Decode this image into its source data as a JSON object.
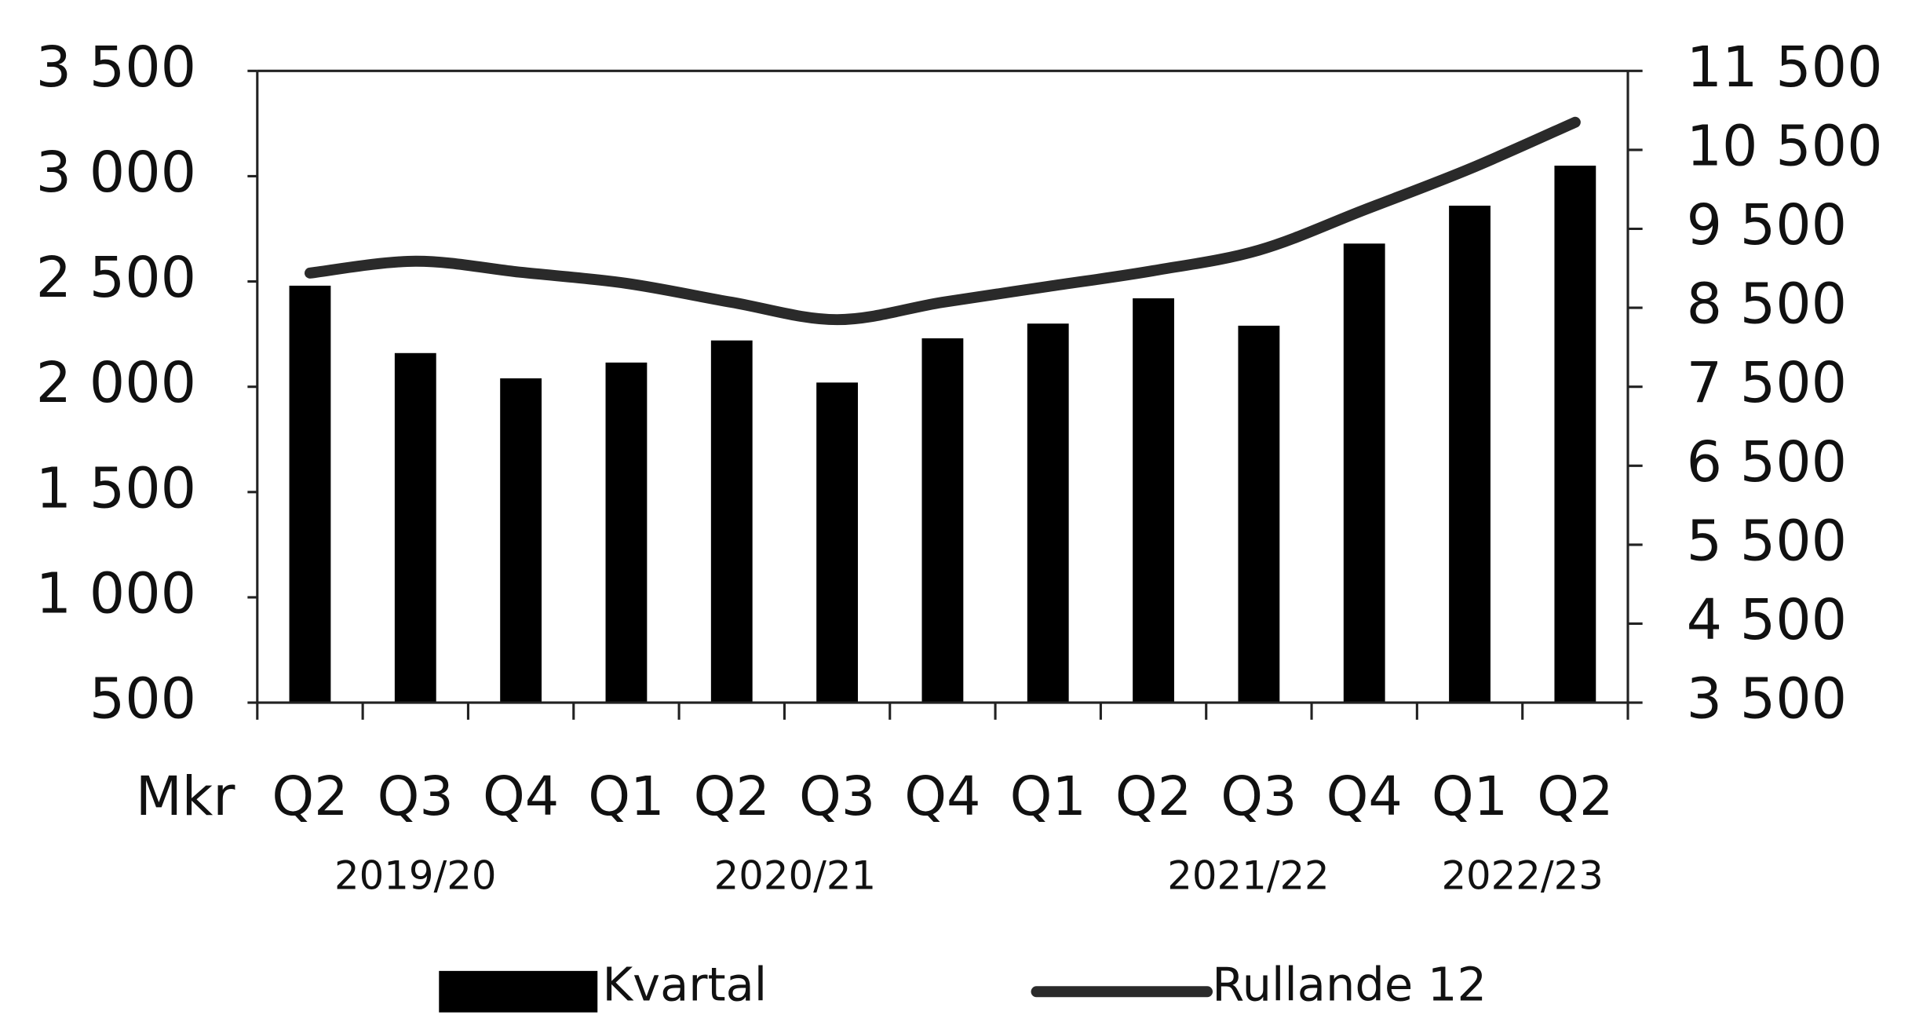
{
  "chart_data": {
    "type": "bar-line",
    "ylabel": "Mkr",
    "categories": [
      "Q2",
      "Q3",
      "Q4",
      "Q1",
      "Q2",
      "Q3",
      "Q4",
      "Q1",
      "Q2",
      "Q3",
      "Q4",
      "Q1",
      "Q2"
    ],
    "periods": [
      "2019/20",
      "2020/21",
      "2021/22",
      "2022/23"
    ],
    "series": [
      {
        "name": "Kvartal",
        "type": "bar",
        "color": "#000000",
        "values": [
          2480,
          2160,
          2040,
          2115,
          2220,
          2020,
          2230,
          2300,
          2420,
          2290,
          2680,
          2860,
          3050
        ]
      },
      {
        "name": "Rullande 12",
        "type": "line",
        "axis": "y2",
        "color": "#2a2a2a",
        "values": [
          8940,
          9090,
          8950,
          8810,
          8570,
          8350,
          8570,
          8770,
          8970,
          9230,
          9740,
          10260,
          10850
        ]
      }
    ],
    "ylim": [
      500,
      3500
    ],
    "yticks": [
      {
        "value": 500,
        "label": "500"
      },
      {
        "value": 1000,
        "label": "1 000"
      },
      {
        "value": 1500,
        "label": "1 500"
      },
      {
        "value": 2000,
        "label": "2 000"
      },
      {
        "value": 2500,
        "label": "2 500"
      },
      {
        "value": 3000,
        "label": "3 000"
      },
      {
        "value": 3500,
        "label": "3 500"
      }
    ],
    "y2lim": [
      3500,
      11500
    ],
    "y2ticks": [
      {
        "value": 3500,
        "label": "3 500"
      },
      {
        "value": 4500,
        "label": "4 500"
      },
      {
        "value": 5500,
        "label": "5 500"
      },
      {
        "value": 6500,
        "label": "6 500"
      },
      {
        "value": 7500,
        "label": "7 500"
      },
      {
        "value": 8500,
        "label": "8 500"
      },
      {
        "value": 9500,
        "label": "9 500"
      },
      {
        "value": 10500,
        "label": "10 500"
      },
      {
        "value": 11500,
        "label": "11 500"
      }
    ],
    "legend": "bottom"
  }
}
